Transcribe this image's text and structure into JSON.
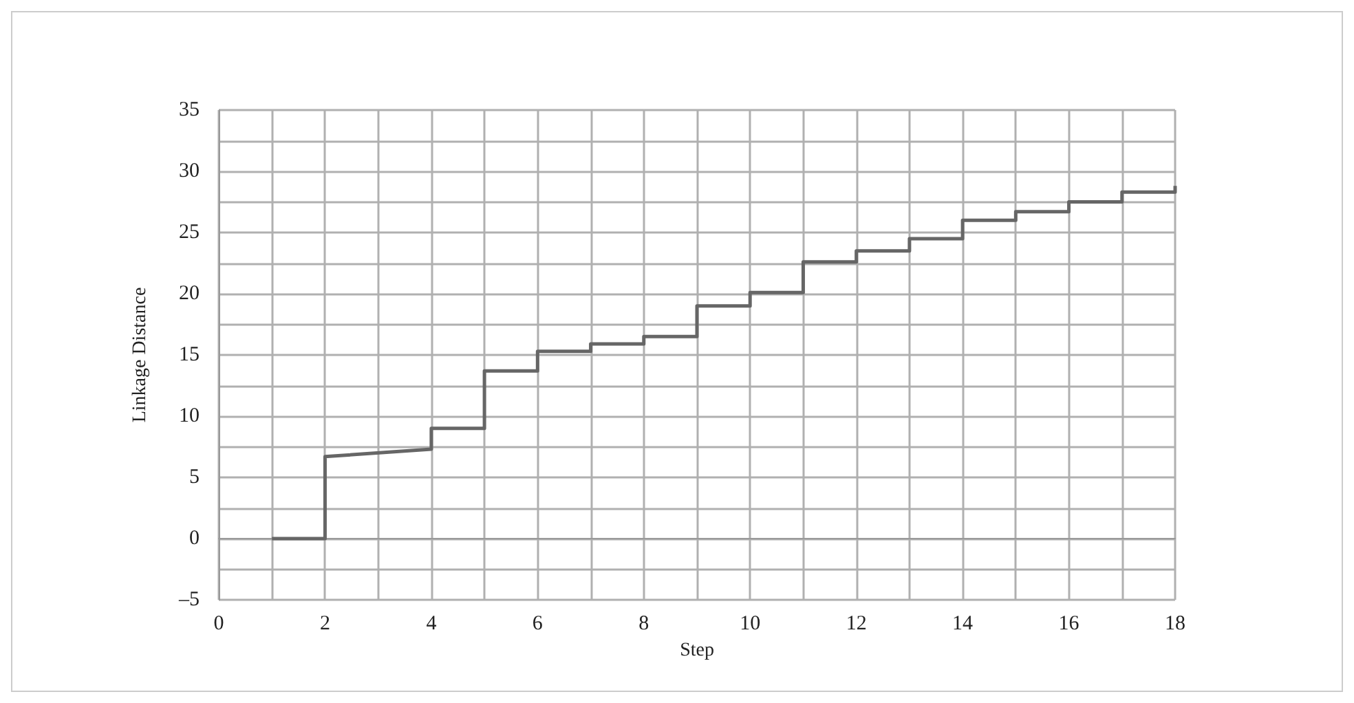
{
  "chart_data": {
    "type": "line",
    "xlabel": "Step",
    "ylabel": "Linkage Distance",
    "series": [
      {
        "color": "#666666",
        "x": [
          1,
          2,
          2,
          4,
          4,
          5,
          5,
          6,
          6,
          7,
          7,
          8,
          8,
          9,
          9,
          10,
          10,
          11,
          11,
          12,
          12,
          13,
          13,
          14,
          14,
          15,
          15,
          16,
          16,
          17,
          17,
          18,
          18
        ],
        "values": [
          0,
          0,
          6.7,
          7.3,
          9,
          9,
          13.7,
          13.7,
          15.3,
          15.3,
          15.9,
          15.9,
          16.5,
          16.5,
          19,
          19,
          20.1,
          20.1,
          22.6,
          22.6,
          23.5,
          23.5,
          24.5,
          24.5,
          26,
          26,
          26.7,
          26.7,
          27.5,
          27.5,
          28.3,
          28.3,
          28.8
        ]
      }
    ],
    "xlim": [
      0,
      18
    ],
    "xticks": [
      0,
      {
        "value": 1,
        "label": null
      },
      2,
      {
        "value": 3,
        "label": null
      },
      4,
      {
        "value": 5,
        "label": null
      },
      6,
      {
        "value": 7,
        "label": null
      },
      8,
      {
        "value": 9,
        "label": null
      },
      10,
      {
        "value": 11,
        "label": null
      },
      12,
      {
        "value": 13,
        "label": null
      },
      14,
      {
        "value": 15,
        "label": null
      },
      16,
      {
        "value": 17,
        "label": null
      },
      18
    ],
    "ylim": [
      -5,
      35
    ],
    "yticks": [
      {
        "value": -5,
        "label": "–5"
      },
      {
        "value": -2.5,
        "label": null
      },
      0,
      {
        "value": 2.5,
        "label": null
      },
      5,
      {
        "value": 7.5,
        "label": null
      },
      10,
      {
        "value": 12.5,
        "label": null
      },
      15,
      {
        "value": 17.5,
        "label": null
      },
      20,
      {
        "value": 22.5,
        "label": null
      },
      25,
      {
        "value": 27.5,
        "label": null
      },
      30,
      {
        "value": 32.5,
        "label": null
      },
      35
    ],
    "grid": true,
    "marker": "none",
    "line_style": "solid"
  }
}
